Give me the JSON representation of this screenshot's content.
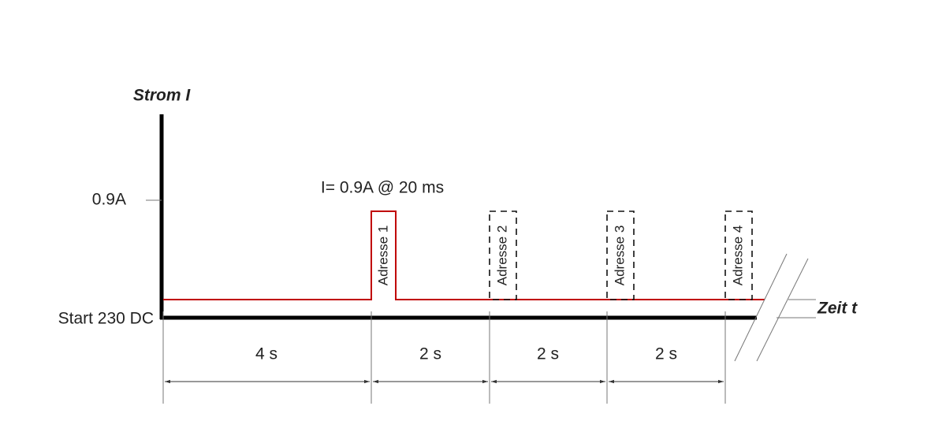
{
  "axes": {
    "y_label": "Strom I",
    "x_label": "Zeit t",
    "y_tick": "0.9A",
    "origin_label": "Start 230 DC"
  },
  "annotation": "I= 0.9A @ 20 ms",
  "pulses": [
    "Adresse 1",
    "Adresse 2",
    "Adresse 3",
    "Adresse 4"
  ],
  "intervals": [
    "4 s",
    "2 s",
    "2 s",
    "2 s"
  ]
}
